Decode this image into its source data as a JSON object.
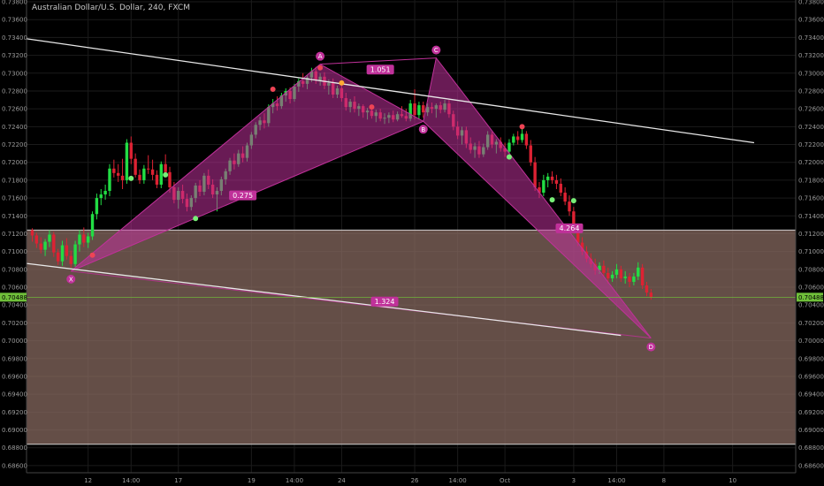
{
  "header": {
    "title": "Australian Dollar/U.S. Dollar, 240, FXCM"
  },
  "colors": {
    "background": "#000000",
    "grid": "#1b1b1b",
    "axis_text": "#9a9a9a",
    "bull": "#22dd44",
    "bear": "#dd2233",
    "pattern": "#c0319a",
    "zone": "#8a6c62",
    "trendline": "#e8e8e8",
    "price_line": "#6fbf3a"
  },
  "chart_data": {
    "type": "candlestick",
    "instrument": "Australian Dollar/U.S. Dollar",
    "timeframe": "240",
    "source": "FXCM",
    "y_axis_range": [
      0.6852,
      0.7382
    ],
    "y_ticks": [
      "0.73800",
      "0.73600",
      "0.73400",
      "0.73200",
      "0.73000",
      "0.72800",
      "0.72600",
      "0.72400",
      "0.72200",
      "0.72000",
      "0.71800",
      "0.71600",
      "0.71400",
      "0.71200",
      "0.71000",
      "0.70800",
      "0.70600",
      "0.70400",
      "0.70200",
      "0.70000",
      "0.69800",
      "0.69600",
      "0.69400",
      "0.69200",
      "0.69000",
      "0.68800",
      "0.68600"
    ],
    "x_ticks": [
      {
        "label": "12",
        "bar": 13
      },
      {
        "label": "14:00",
        "bar": 23
      },
      {
        "label": "17",
        "bar": 34
      },
      {
        "label": "19",
        "bar": 51
      },
      {
        "label": "14:00",
        "bar": 61
      },
      {
        "label": "24",
        "bar": 72
      },
      {
        "label": "26",
        "bar": 89
      },
      {
        "label": "14:00",
        "bar": 99
      },
      {
        "label": "Oct",
        "bar": 110
      },
      {
        "label": "3",
        "bar": 126
      },
      {
        "label": "14:00",
        "bar": 136
      },
      {
        "label": "8",
        "bar": 147
      },
      {
        "label": "10",
        "bar": 163
      }
    ],
    "last_price": "0.70488",
    "last_price_value": 0.70488,
    "candles": [
      [
        0.7124,
        0.7126,
        0.7111,
        0.7118
      ],
      [
        0.7118,
        0.7121,
        0.7104,
        0.7109
      ],
      [
        0.7109,
        0.7116,
        0.7098,
        0.7102
      ],
      [
        0.7102,
        0.7114,
        0.7095,
        0.7111
      ],
      [
        0.7111,
        0.7124,
        0.7105,
        0.7119
      ],
      [
        0.7119,
        0.7122,
        0.7094,
        0.7099
      ],
      [
        0.7099,
        0.7103,
        0.7085,
        0.7089
      ],
      [
        0.7089,
        0.7112,
        0.7084,
        0.7107
      ],
      [
        0.7107,
        0.7115,
        0.7091,
        0.7095
      ],
      [
        0.7095,
        0.7101,
        0.7082,
        0.7086
      ],
      [
        0.7086,
        0.7112,
        0.7083,
        0.7108
      ],
      [
        0.7108,
        0.7124,
        0.71,
        0.7119
      ],
      [
        0.7119,
        0.7127,
        0.7105,
        0.711
      ],
      [
        0.711,
        0.7121,
        0.7104,
        0.7117
      ],
      [
        0.7117,
        0.7145,
        0.7113,
        0.7142
      ],
      [
        0.7142,
        0.7165,
        0.7136,
        0.716
      ],
      [
        0.716,
        0.717,
        0.7152,
        0.7164
      ],
      [
        0.7164,
        0.7175,
        0.7158,
        0.7168
      ],
      [
        0.7168,
        0.7198,
        0.7162,
        0.7193
      ],
      [
        0.7193,
        0.7203,
        0.7183,
        0.7188
      ],
      [
        0.7188,
        0.7198,
        0.7178,
        0.7185
      ],
      [
        0.7185,
        0.7204,
        0.717,
        0.718
      ],
      [
        0.718,
        0.7226,
        0.7176,
        0.7222
      ],
      [
        0.7222,
        0.7229,
        0.7198,
        0.7204
      ],
      [
        0.7204,
        0.721,
        0.7183,
        0.7186
      ],
      [
        0.7186,
        0.7192,
        0.7176,
        0.718
      ],
      [
        0.718,
        0.7197,
        0.7176,
        0.7193
      ],
      [
        0.7193,
        0.7208,
        0.7187,
        0.7192
      ],
      [
        0.7192,
        0.7203,
        0.718,
        0.7186
      ],
      [
        0.7186,
        0.7191,
        0.7171,
        0.7175
      ],
      [
        0.7175,
        0.7201,
        0.7171,
        0.7198
      ],
      [
        0.7198,
        0.7209,
        0.7184,
        0.7189
      ],
      [
        0.7189,
        0.7195,
        0.7166,
        0.7172
      ],
      [
        0.7172,
        0.7178,
        0.7154,
        0.7158
      ],
      [
        0.7158,
        0.7172,
        0.7148,
        0.7168
      ],
      [
        0.7168,
        0.7175,
        0.7154,
        0.7159
      ],
      [
        0.7159,
        0.7165,
        0.7145,
        0.715
      ],
      [
        0.715,
        0.7163,
        0.7146,
        0.716
      ],
      [
        0.716,
        0.7177,
        0.7155,
        0.7174
      ],
      [
        0.7174,
        0.718,
        0.7162,
        0.7167
      ],
      [
        0.7167,
        0.7188,
        0.7163,
        0.7185
      ],
      [
        0.7185,
        0.7192,
        0.717,
        0.7175
      ],
      [
        0.7175,
        0.7181,
        0.716,
        0.7164
      ],
      [
        0.7164,
        0.7172,
        0.7145,
        0.7168
      ],
      [
        0.7168,
        0.7184,
        0.7163,
        0.7181
      ],
      [
        0.7181,
        0.7193,
        0.7175,
        0.719
      ],
      [
        0.719,
        0.7205,
        0.7186,
        0.7202
      ],
      [
        0.7202,
        0.721,
        0.7192,
        0.7198
      ],
      [
        0.7198,
        0.7214,
        0.7195,
        0.721
      ],
      [
        0.721,
        0.7218,
        0.72,
        0.7205
      ],
      [
        0.7205,
        0.7222,
        0.7201,
        0.7219
      ],
      [
        0.7219,
        0.7234,
        0.7215,
        0.7231
      ],
      [
        0.7231,
        0.7245,
        0.7227,
        0.7242
      ],
      [
        0.7242,
        0.7251,
        0.7236,
        0.7247
      ],
      [
        0.7247,
        0.7255,
        0.7238,
        0.7244
      ],
      [
        0.7244,
        0.7265,
        0.724,
        0.7262
      ],
      [
        0.7262,
        0.7271,
        0.7255,
        0.7266
      ],
      [
        0.7266,
        0.7274,
        0.7258,
        0.7263
      ],
      [
        0.7263,
        0.7278,
        0.726,
        0.7275
      ],
      [
        0.7275,
        0.7283,
        0.7268,
        0.728
      ],
      [
        0.728,
        0.7284,
        0.7266,
        0.7271
      ],
      [
        0.7271,
        0.7288,
        0.7268,
        0.7285
      ],
      [
        0.7285,
        0.7294,
        0.7279,
        0.7291
      ],
      [
        0.7291,
        0.73,
        0.7284,
        0.7288
      ],
      [
        0.7288,
        0.7298,
        0.7282,
        0.7295
      ],
      [
        0.7295,
        0.7306,
        0.729,
        0.7302
      ],
      [
        0.7302,
        0.7307,
        0.7288,
        0.7292
      ],
      [
        0.7292,
        0.73,
        0.7286,
        0.7296
      ],
      [
        0.7296,
        0.7301,
        0.7282,
        0.7286
      ],
      [
        0.7286,
        0.7293,
        0.7276,
        0.7289
      ],
      [
        0.7289,
        0.7294,
        0.7272,
        0.7276
      ],
      [
        0.7276,
        0.7286,
        0.7272,
        0.7283
      ],
      [
        0.7283,
        0.7288,
        0.7268,
        0.7272
      ],
      [
        0.7272,
        0.7278,
        0.7258,
        0.7262
      ],
      [
        0.7262,
        0.7271,
        0.7256,
        0.7268
      ],
      [
        0.7268,
        0.7274,
        0.7256,
        0.726
      ],
      [
        0.726,
        0.7266,
        0.7252,
        0.7263
      ],
      [
        0.7263,
        0.7265,
        0.725,
        0.7256
      ],
      [
        0.7256,
        0.7261,
        0.7248,
        0.7258
      ],
      [
        0.7258,
        0.7262,
        0.7249,
        0.7252
      ],
      [
        0.7252,
        0.7259,
        0.7245,
        0.7256
      ],
      [
        0.7256,
        0.726,
        0.7246,
        0.7249
      ],
      [
        0.7249,
        0.7255,
        0.7243,
        0.725
      ],
      [
        0.725,
        0.7256,
        0.7244,
        0.7253
      ],
      [
        0.7253,
        0.7258,
        0.7245,
        0.7248
      ],
      [
        0.7248,
        0.7257,
        0.7246,
        0.7254
      ],
      [
        0.7254,
        0.7263,
        0.725,
        0.7252
      ],
      [
        0.7252,
        0.726,
        0.7246,
        0.7249
      ],
      [
        0.7249,
        0.727,
        0.7246,
        0.7266
      ],
      [
        0.7266,
        0.7282,
        0.7248,
        0.7253
      ],
      [
        0.7253,
        0.7268,
        0.7248,
        0.7264
      ],
      [
        0.7264,
        0.7268,
        0.725,
        0.7256
      ],
      [
        0.7256,
        0.7266,
        0.7252,
        0.7262
      ],
      [
        0.7262,
        0.7267,
        0.7255,
        0.726
      ],
      [
        0.726,
        0.7266,
        0.725,
        0.7264
      ],
      [
        0.7264,
        0.7268,
        0.7255,
        0.7259
      ],
      [
        0.7259,
        0.727,
        0.7256,
        0.7266
      ],
      [
        0.7266,
        0.727,
        0.725,
        0.7254
      ],
      [
        0.7254,
        0.7258,
        0.7236,
        0.724
      ],
      [
        0.724,
        0.7246,
        0.7226,
        0.723
      ],
      [
        0.723,
        0.724,
        0.722,
        0.7236
      ],
      [
        0.7236,
        0.724,
        0.7216,
        0.7221
      ],
      [
        0.7221,
        0.7228,
        0.721,
        0.7214
      ],
      [
        0.7214,
        0.7222,
        0.7205,
        0.7218
      ],
      [
        0.7218,
        0.7224,
        0.7205,
        0.7209
      ],
      [
        0.7209,
        0.7221,
        0.7206,
        0.7217
      ],
      [
        0.7217,
        0.7235,
        0.7214,
        0.7231
      ],
      [
        0.7231,
        0.7234,
        0.7216,
        0.722
      ],
      [
        0.722,
        0.7226,
        0.721,
        0.7223
      ],
      [
        0.7223,
        0.7228,
        0.7212,
        0.7216
      ],
      [
        0.7216,
        0.7222,
        0.7206,
        0.7212
      ],
      [
        0.7212,
        0.7226,
        0.7209,
        0.7222
      ],
      [
        0.7222,
        0.7232,
        0.7219,
        0.7229
      ],
      [
        0.7229,
        0.7235,
        0.722,
        0.7225
      ],
      [
        0.7225,
        0.7238,
        0.7222,
        0.7232
      ],
      [
        0.7232,
        0.7235,
        0.7215,
        0.7219
      ],
      [
        0.7219,
        0.7225,
        0.7196,
        0.72
      ],
      [
        0.72,
        0.7206,
        0.7168,
        0.7172
      ],
      [
        0.7172,
        0.7178,
        0.716,
        0.7166
      ],
      [
        0.7166,
        0.7186,
        0.7162,
        0.718
      ],
      [
        0.718,
        0.7188,
        0.7172,
        0.7184
      ],
      [
        0.7184,
        0.719,
        0.7176,
        0.718
      ],
      [
        0.718,
        0.7186,
        0.717,
        0.7176
      ],
      [
        0.7176,
        0.7182,
        0.7162,
        0.7166
      ],
      [
        0.7166,
        0.7172,
        0.7152,
        0.7156
      ],
      [
        0.7156,
        0.7163,
        0.714,
        0.7145
      ],
      [
        0.7145,
        0.715,
        0.712,
        0.7124
      ],
      [
        0.7124,
        0.7128,
        0.7106,
        0.711
      ],
      [
        0.711,
        0.7116,
        0.7096,
        0.71
      ],
      [
        0.71,
        0.7106,
        0.7088,
        0.7092
      ],
      [
        0.7092,
        0.7098,
        0.7082,
        0.7086
      ],
      [
        0.7086,
        0.7092,
        0.7074,
        0.7079
      ],
      [
        0.7079,
        0.7088,
        0.7075,
        0.7084
      ],
      [
        0.7084,
        0.709,
        0.7072,
        0.7076
      ],
      [
        0.7076,
        0.7082,
        0.7064,
        0.707
      ],
      [
        0.707,
        0.7078,
        0.7066,
        0.7074
      ],
      [
        0.7074,
        0.7086,
        0.707,
        0.708
      ],
      [
        0.708,
        0.7084,
        0.7066,
        0.707
      ],
      [
        0.707,
        0.7078,
        0.7064,
        0.7072
      ],
      [
        0.7072,
        0.7076,
        0.706,
        0.7066
      ],
      [
        0.7066,
        0.7076,
        0.7062,
        0.7072
      ],
      [
        0.7072,
        0.7088,
        0.7068,
        0.7082
      ],
      [
        0.7082,
        0.7086,
        0.7058,
        0.7062
      ],
      [
        0.7062,
        0.7066,
        0.705,
        0.7054
      ],
      [
        0.7054,
        0.7058,
        0.7046,
        0.7049
      ]
    ],
    "signal_dots": [
      {
        "bar": 14,
        "value": 0.7096,
        "color": "#ee4455"
      },
      {
        "bar": 23,
        "value": 0.7182,
        "color": "#77ee77"
      },
      {
        "bar": 31,
        "value": 0.7186,
        "color": "#77ee77"
      },
      {
        "bar": 38,
        "value": 0.7137,
        "color": "#77ee77"
      },
      {
        "bar": 56,
        "value": 0.7282,
        "color": "#ee4455"
      },
      {
        "bar": 67,
        "value": 0.7306,
        "color": "#ee4455"
      },
      {
        "bar": 72,
        "value": 0.7289,
        "color": "#ffaa33"
      },
      {
        "bar": 79,
        "value": 0.7262,
        "color": "#ee4455"
      },
      {
        "bar": 111,
        "value": 0.7206,
        "color": "#77ee77"
      },
      {
        "bar": 114,
        "value": 0.724,
        "color": "#ee4455"
      },
      {
        "bar": 121,
        "value": 0.7158,
        "color": "#77ee77"
      },
      {
        "bar": 126,
        "value": 0.7157,
        "color": "#77ee77"
      }
    ],
    "pattern": {
      "points": [
        {
          "label": "X",
          "bar": 9,
          "value": 0.7078
        },
        {
          "label": "A",
          "bar": 67,
          "value": 0.731
        },
        {
          "label": "B",
          "bar": 91,
          "value": 0.7246
        },
        {
          "label": "C",
          "bar": 94,
          "value": 0.7317
        },
        {
          "label": "D",
          "bar": 144,
          "value": 0.7003
        }
      ],
      "ratios": [
        {
          "label": "0.275",
          "bar": 49,
          "value": 0.7163
        },
        {
          "label": "1.051",
          "bar": 81,
          "value": 0.7304
        },
        {
          "label": "4.264",
          "bar": 125,
          "value": 0.7126
        },
        {
          "label": "1.324",
          "bar": 82,
          "value": 0.7044
        }
      ]
    },
    "trendlines": [
      {
        "from": {
          "bar": -2,
          "value": 0.7339
        },
        "to": {
          "bar": 168,
          "value": 0.7222
        }
      },
      {
        "from": {
          "bar": -2,
          "value": 0.7087
        },
        "to": {
          "bar": 137,
          "value": 0.7006
        }
      }
    ],
    "zone": {
      "top": 0.7124,
      "bottom": 0.6884
    }
  }
}
